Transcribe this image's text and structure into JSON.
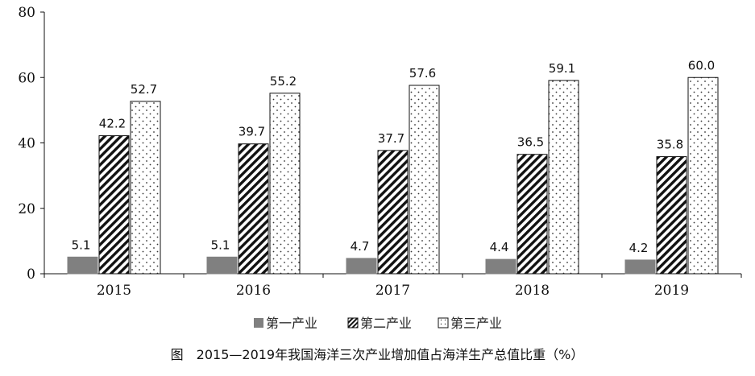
{
  "chart_data": {
    "type": "bar",
    "categories": [
      "2015",
      "2016",
      "2017",
      "2018",
      "2019"
    ],
    "series": [
      {
        "name": "第一产业",
        "values": [
          5.1,
          5.1,
          4.7,
          4.4,
          4.2
        ],
        "pattern": "solid-gray",
        "color": "#808080"
      },
      {
        "name": "第二产业",
        "values": [
          42.2,
          39.7,
          37.7,
          36.5,
          35.8
        ],
        "pattern": "diagonal-hatch",
        "color": "#111111"
      },
      {
        "name": "第三产业",
        "values": [
          52.7,
          55.2,
          57.6,
          59.1,
          60.0
        ],
        "pattern": "dotted",
        "color": "#333333"
      }
    ],
    "data_labels": [
      [
        "5.1",
        "5.1",
        "4.7",
        "4.4",
        "4.2"
      ],
      [
        "42.2",
        "39.7",
        "37.7",
        "36.5",
        "35.8"
      ],
      [
        "52.7",
        "55.2",
        "57.6",
        "59.1",
        "60.0"
      ]
    ],
    "yticks": [
      "0",
      "20",
      "40",
      "60",
      "80"
    ],
    "ylim": [
      0,
      80
    ],
    "legend_position": "bottom",
    "title": "图　2015—2019年我国海洋三次产业增加值占海洋生产总值比重（%）",
    "grid": false
  }
}
